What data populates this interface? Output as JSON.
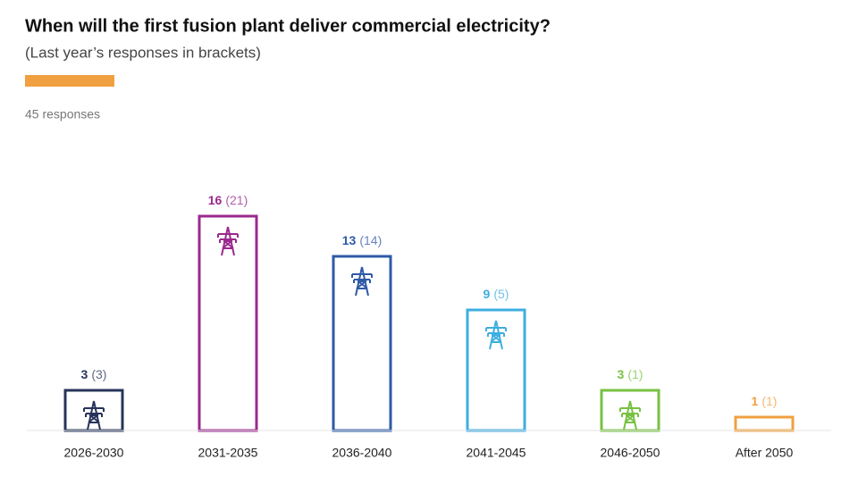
{
  "chart_data": {
    "type": "bar",
    "title": "When will the first fusion plant deliver commercial electricity?",
    "subtitle": "(Last year’s responses in brackets)",
    "note": "45 responses",
    "categories": [
      "2026-2030",
      "2031-2035",
      "2036-2040",
      "2041-2045",
      "2046-2050",
      "After 2050"
    ],
    "values": [
      3,
      16,
      13,
      9,
      3,
      1
    ],
    "previous_values": [
      3,
      21,
      14,
      5,
      1,
      1
    ],
    "previous_value_labels": [
      "(3)",
      "(21)",
      "(14)",
      "(5)",
      "(1)",
      "(1)"
    ],
    "colors": [
      "#27345a",
      "#9a2a8e",
      "#2f5aa6",
      "#3eaee0",
      "#78c143",
      "#f0a040"
    ],
    "accent_color": "#f0a040"
  }
}
